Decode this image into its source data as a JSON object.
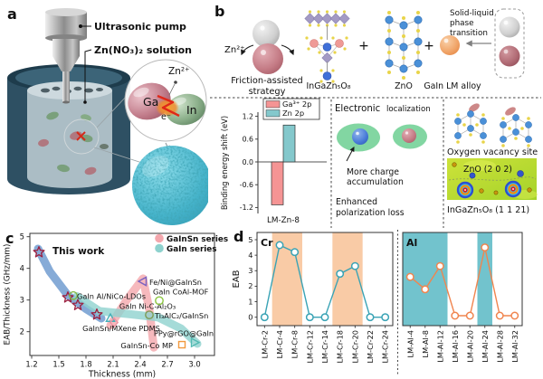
{
  "figure": {
    "panel_a": {
      "label": "a",
      "pump_label": "Ultrasonic pump",
      "solution_label": "Zn(NO₃)₂ solution",
      "ga_label": "Ga",
      "in_label": "In",
      "electron_label": "e⁻",
      "zn_ion_label": "Zn²⁺"
    },
    "panel_b": {
      "label": "b",
      "zn_ion_label": "Zn²⁺",
      "friction_caption": [
        "Friction-assisted",
        "strategy"
      ],
      "igzo_label": "InGaZn₅O₈",
      "plus": "+",
      "zno_label": "ZnO",
      "alloy_label": "GaIn LM alloy",
      "phase_caption": [
        "Solid-liquid",
        "phase",
        "transition"
      ],
      "localization": {
        "title_main": "Electronic",
        "title_sub": "localization",
        "charge_caption": [
          "More charge",
          "accumulation"
        ],
        "loss_caption": [
          "Enhanced",
          "polarization loss"
        ]
      },
      "vacancy": {
        "site_label": "Oxygen vacancy site",
        "zno_plane_label": "ZnO (2 0 2)",
        "igzo_plane_label": "InGaZn₅O₈ (1 1 21)"
      }
    },
    "panel_c": {
      "label": "c"
    },
    "panel_d": {
      "label": "d"
    }
  },
  "chart_data": [
    {
      "id": "binding_energy_shift",
      "type": "bar",
      "categories": [
        "LM-Zn-8"
      ],
      "series": [
        {
          "name": "Ga³⁺ 2p",
          "color": "#f59494",
          "values": [
            -1.13
          ]
        },
        {
          "name": "Zn 2p",
          "color": "#84c8cc",
          "values": [
            0.97
          ]
        }
      ],
      "ylabel": "Binding energy shift (eV)",
      "yticks": [
        1.2,
        0.6,
        0.0,
        -0.6,
        -1.2
      ],
      "ylim": [
        -1.45,
        1.45
      ],
      "legend_position": "top-right",
      "grid": false
    },
    {
      "id": "eab_per_thickness",
      "type": "scatter",
      "xlabel": "Thickness (mm)",
      "ylabel": "EAB/Thickness (GHz/mm)",
      "xticks": [
        1.2,
        1.5,
        1.8,
        2.1,
        2.4,
        2.7,
        3.0
      ],
      "yticks": [
        2,
        3,
        4,
        5
      ],
      "xlim": [
        1.18,
        3.22
      ],
      "ylim": [
        1.25,
        5.1
      ],
      "annotation": {
        "text": "This work",
        "x": 1.43,
        "y": 4.45
      },
      "legend": {
        "position": "top-right",
        "entries": [
          {
            "label": "GaInSn series",
            "color": "#f4a7ad"
          },
          {
            "label": "GaIn series",
            "color": "#8ed2ce"
          }
        ]
      },
      "this_work": {
        "marker": "star",
        "color": "#9c1f3f",
        "points": [
          [
            1.28,
            4.51
          ],
          [
            1.6,
            3.08
          ],
          [
            1.71,
            2.84
          ],
          [
            1.92,
            2.54
          ]
        ]
      },
      "points": [
        {
          "label": "GaIn Al/NiCo-LDOs",
          "x": 1.66,
          "y": 3.14,
          "marker": "circle",
          "color": "#86b84a",
          "label_x": 1.7,
          "label_y": 3.12,
          "anchor": "start"
        },
        {
          "label": "GaIn Ni-C-Al₂O₃",
          "x": 2.07,
          "y": 2.43,
          "marker": "triangle-up",
          "color": "#45b0b8",
          "label_x": 2.48,
          "label_y": 2.81,
          "anchor": "middle"
        },
        {
          "label": "GaInSn/MXene PDMS",
          "x": 2.11,
          "y": 2.29,
          "marker": "diamond",
          "color": "#ec93a2",
          "label_x": 2.19,
          "label_y": 2.1,
          "anchor": "middle"
        },
        {
          "label": "Fe/Ni@GaInSn",
          "x": 2.43,
          "y": 3.59,
          "marker": "triangle-left",
          "color": "#7a62c0",
          "label_x": 2.5,
          "label_y": 3.57,
          "anchor": "start"
        },
        {
          "label": "GaIn CoAl-MOF",
          "x": 2.61,
          "y": 2.98,
          "marker": "circle",
          "color": "#8cc63f",
          "label_x": 2.54,
          "label_y": 3.26,
          "anchor": "start"
        },
        {
          "label": "Ti₃AlC₂/GaInSn",
          "x": 2.5,
          "y": 2.53,
          "marker": "circle",
          "color": "#7d9b53",
          "label_x": 2.56,
          "label_y": 2.51,
          "anchor": "start"
        },
        {
          "label": "PPy@rGO@GaIn",
          "x": 3.0,
          "y": 1.66,
          "marker": "triangle-right",
          "color": "#52bab2",
          "label_x": 2.88,
          "label_y": 1.95,
          "anchor": "middle"
        },
        {
          "label": "GaInSn-Co MP",
          "x": 2.86,
          "y": 1.59,
          "marker": "square",
          "color": "#f29a3e",
          "label_x": 2.76,
          "label_y": 1.57,
          "anchor": "end"
        }
      ],
      "bands": [
        {
          "series": "This work",
          "color": "#5e8fca",
          "opacity": 0.75,
          "width": 9,
          "path": [
            [
              1.27,
              4.62
            ],
            [
              1.4,
              3.9
            ],
            [
              1.6,
              3.15
            ],
            [
              1.8,
              2.72
            ],
            [
              1.97,
              2.42
            ]
          ]
        },
        {
          "series": "GaInSn",
          "color": "#f4a7ad",
          "opacity": 0.8,
          "width": 9,
          "path": [
            [
              2.07,
              2.2
            ],
            [
              2.25,
              3.0
            ],
            [
              2.43,
              3.68
            ],
            [
              2.5,
              2.7
            ],
            [
              2.55,
              1.5
            ]
          ]
        },
        {
          "series": "GaIn",
          "color": "#8ed2ce",
          "opacity": 0.8,
          "width": 9,
          "path": [
            [
              1.7,
              3.12
            ],
            [
              1.95,
              2.65
            ],
            [
              2.3,
              2.55
            ],
            [
              2.6,
              2.45
            ],
            [
              2.85,
              2.1
            ],
            [
              3.03,
              1.62
            ]
          ]
        }
      ]
    },
    {
      "id": "eab_vs_doping",
      "type": "line",
      "ylabel": "EAB",
      "yticks": [
        0,
        1,
        2,
        3,
        4,
        5
      ],
      "ylim": [
        -0.55,
        5.45
      ],
      "subplots": [
        {
          "name": "Cr",
          "name_color": "#3aa3b5",
          "line_color": "#3aa3b5",
          "categories": [
            "LM-Cr-2",
            "LM-Cr-4",
            "LM-Cr-8",
            "LM-Cr-12",
            "LM-Cr-14",
            "LM-Cr-18",
            "LM-Cr-20",
            "LM-Cr-22",
            "LM-Cr-24"
          ],
          "values": [
            0,
            4.65,
            4.2,
            0,
            0,
            2.8,
            3.3,
            0,
            0
          ],
          "highlight_bands": [
            [
              1,
              2
            ],
            [
              5,
              6
            ]
          ],
          "band_color": "#f9cba6"
        },
        {
          "name": "Al",
          "name_color": "#ea4f38",
          "line_color": "#f0854f",
          "categories": [
            "LM-Al-4",
            "LM-Al-8",
            "LM-Al-12",
            "LM-Al-16",
            "LM-Al-20",
            "LM-Al-24",
            "LM-Al-28",
            "LM-Al-32"
          ],
          "values": [
            2.6,
            1.8,
            3.3,
            0.1,
            0.1,
            4.5,
            0.1,
            0.1
          ],
          "highlight_bands": [
            [
              0,
              2
            ],
            [
              5,
              5
            ]
          ],
          "band_color": "#72c3cd"
        }
      ]
    }
  ]
}
